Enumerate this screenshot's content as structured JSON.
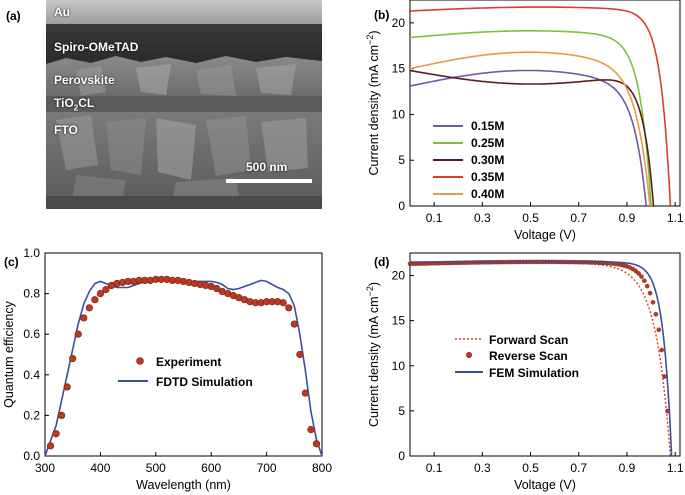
{
  "panels": {
    "a": {
      "letter": "(a)",
      "layers": [
        "Au",
        "Spiro-OMeTAD",
        "Perovskite",
        "TiO2CL",
        "FTO"
      ],
      "tio2_main": "TiO",
      "tio2_sub": "2",
      "tio2_tail": "CL",
      "scale_bar": "500 nm"
    },
    "b": {
      "letter": "(b)"
    },
    "c": {
      "letter": "(c)"
    },
    "d": {
      "letter": "(d)"
    }
  },
  "chart_data": [
    {
      "panel": "b",
      "type": "line",
      "xlabel": "Voltage (V)",
      "ylabel_main": "Current density (mA cm",
      "ylabel_sup": "−2",
      "ylabel_tail": ")",
      "xlim": [
        0,
        1.12
      ],
      "ylim": [
        0,
        22.5
      ],
      "xticks": [
        0.1,
        0.3,
        0.5,
        0.7,
        0.9,
        1.1
      ],
      "yticks": [
        0,
        5,
        10,
        15,
        20
      ],
      "legend_position": "lower-left",
      "series": [
        {
          "name": "0.15M",
          "color": "#6b5ba8",
          "jsc": 13.1,
          "voc": 0.98,
          "shape": 0.05,
          "tilt": 0.13
        },
        {
          "name": "0.25M",
          "color": "#7fc13e",
          "jsc": 18.4,
          "voc": 1.0,
          "shape": 0.045,
          "tilt": 0.04
        },
        {
          "name": "0.30M",
          "color": "#5a1e1e",
          "jsc": 14.8,
          "voc": 1.01,
          "shape": 0.045,
          "tilt": -0.1
        },
        {
          "name": "0.35M",
          "color": "#d9402a",
          "jsc": 21.3,
          "voc": 1.08,
          "shape": 0.04,
          "tilt": 0.02
        },
        {
          "name": "0.40M",
          "color": "#e69a4a",
          "jsc": 15.0,
          "voc": 0.995,
          "shape": 0.055,
          "tilt": 0.12
        }
      ]
    },
    {
      "panel": "c",
      "type": "line",
      "xlabel": "Wavelength (nm)",
      "ylabel": "Quantum efficiency",
      "xlim": [
        300,
        800
      ],
      "ylim": [
        0,
        1.0
      ],
      "xticks": [
        300,
        400,
        500,
        600,
        700,
        800
      ],
      "yticks": [
        0.0,
        0.2,
        0.4,
        0.6,
        0.8,
        1.0
      ],
      "legend_position": "center",
      "series": [
        {
          "name": "Experiment",
          "kind": "scatter",
          "color": "#b83a22",
          "x": [
            310,
            320,
            330,
            340,
            350,
            360,
            370,
            380,
            390,
            400,
            410,
            420,
            430,
            440,
            450,
            460,
            470,
            480,
            490,
            500,
            510,
            520,
            530,
            540,
            550,
            560,
            570,
            580,
            590,
            600,
            610,
            620,
            630,
            640,
            650,
            660,
            670,
            680,
            690,
            700,
            710,
            720,
            730,
            740,
            750,
            760,
            770,
            780,
            790
          ],
          "y": [
            0.05,
            0.11,
            0.2,
            0.34,
            0.48,
            0.6,
            0.68,
            0.73,
            0.77,
            0.8,
            0.82,
            0.84,
            0.85,
            0.855,
            0.86,
            0.86,
            0.865,
            0.865,
            0.865,
            0.87,
            0.87,
            0.87,
            0.865,
            0.865,
            0.86,
            0.855,
            0.85,
            0.845,
            0.84,
            0.835,
            0.825,
            0.81,
            0.8,
            0.79,
            0.78,
            0.77,
            0.76,
            0.755,
            0.755,
            0.76,
            0.76,
            0.76,
            0.755,
            0.73,
            0.65,
            0.5,
            0.31,
            0.13,
            0.06
          ]
        },
        {
          "name": "FDTD Simulation",
          "kind": "line",
          "color": "#3a4f9a",
          "x": [
            300,
            320,
            340,
            360,
            370,
            380,
            390,
            400,
            410,
            420,
            430,
            440,
            450,
            460,
            470,
            480,
            490,
            500,
            510,
            520,
            530,
            540,
            550,
            560,
            570,
            580,
            590,
            600,
            610,
            620,
            630,
            640,
            650,
            660,
            670,
            680,
            690,
            700,
            710,
            720,
            730,
            740,
            750,
            760,
            770,
            780,
            790,
            800
          ],
          "y": [
            0.0,
            0.15,
            0.4,
            0.65,
            0.75,
            0.81,
            0.85,
            0.86,
            0.85,
            0.84,
            0.83,
            0.83,
            0.83,
            0.84,
            0.85,
            0.86,
            0.87,
            0.875,
            0.875,
            0.875,
            0.87,
            0.87,
            0.865,
            0.86,
            0.86,
            0.86,
            0.86,
            0.86,
            0.855,
            0.845,
            0.825,
            0.82,
            0.825,
            0.835,
            0.845,
            0.855,
            0.865,
            0.86,
            0.845,
            0.83,
            0.82,
            0.8,
            0.74,
            0.6,
            0.42,
            0.22,
            0.08,
            0.0
          ]
        }
      ]
    },
    {
      "panel": "d",
      "type": "line",
      "xlabel": "Voltage (V)",
      "ylabel_main": "Current density (mA cm",
      "ylabel_sup": "−2",
      "ylabel_tail": ")",
      "xlim": [
        0,
        1.12
      ],
      "ylim": [
        0,
        22.5
      ],
      "xticks": [
        0.1,
        0.3,
        0.5,
        0.7,
        0.9,
        1.1
      ],
      "yticks": [
        0,
        5,
        10,
        15,
        20
      ],
      "legend_position": "center-left",
      "series": [
        {
          "name": "Forward Scan",
          "kind": "dotted",
          "color": "#d9402a",
          "jsc": 21.2,
          "voc": 1.08,
          "shape": 0.06,
          "tilt": 0.01
        },
        {
          "name": "Reverse Scan",
          "kind": "scatter",
          "color": "#b83a22",
          "jsc": 21.3,
          "voc": 1.08,
          "shape": 0.045,
          "tilt": 0.01
        },
        {
          "name": "FEM Simulation",
          "kind": "line",
          "color": "#3a4f9a",
          "jsc": 21.5,
          "voc": 1.085,
          "shape": 0.035,
          "tilt": 0.0
        }
      ]
    }
  ]
}
